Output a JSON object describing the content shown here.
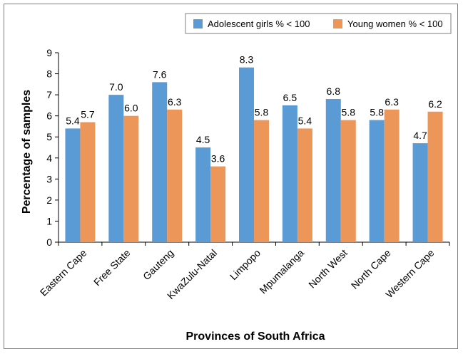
{
  "chart_data": {
    "type": "bar",
    "categories": [
      "Eastern Cape",
      "Free State",
      "Gauteng",
      "KwaZulu-Natal",
      "Limpopo",
      "Mpumalanga",
      "North West",
      "North Cape",
      "Western Cape"
    ],
    "series": [
      {
        "name": "Adolescent girls % < 100",
        "color": "#5b9bd5",
        "values": [
          5.4,
          7.0,
          7.6,
          4.5,
          8.3,
          6.5,
          6.8,
          5.8,
          4.7
        ],
        "labels": [
          "5.4",
          "7.0",
          "7.6",
          "4.5",
          "8.3",
          "6.5",
          "6.8",
          "5.8",
          "4.7"
        ]
      },
      {
        "name": "Young women % < 100",
        "color": "#ed9659",
        "values": [
          5.7,
          6.0,
          6.3,
          3.6,
          5.8,
          5.4,
          5.8,
          6.3,
          6.2
        ],
        "labels": [
          "5.7",
          "6.0",
          "6.3",
          "3.6",
          "5.8",
          "5.4",
          "5.8",
          "6.3",
          "6.2"
        ]
      }
    ],
    "title": "",
    "xlabel": "Provinces of South Africa",
    "ylabel": "Percentage of samples",
    "ylim": [
      0,
      9
    ],
    "yticks": [
      "0",
      "1",
      "2",
      "3",
      "4",
      "5",
      "6",
      "7",
      "8",
      "9"
    ],
    "grid": false,
    "legend_position": "top-right"
  }
}
